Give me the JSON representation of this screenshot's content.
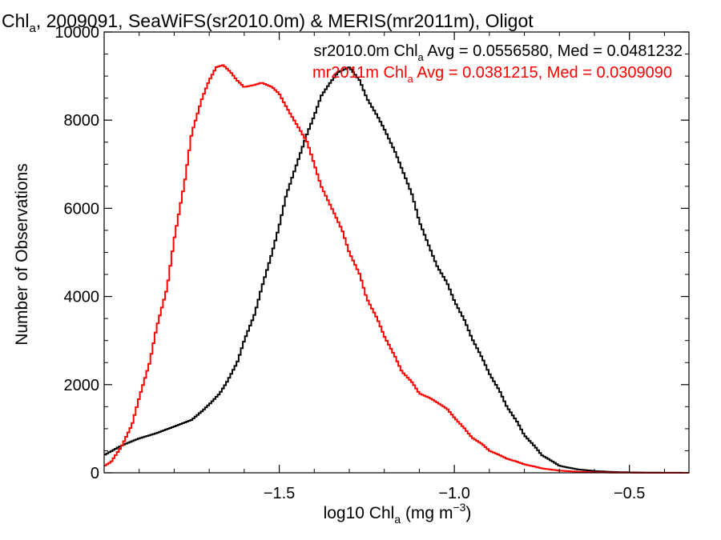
{
  "chart_data": {
    "type": "line",
    "title": "Chl, 2009091, SeaWiFS(sr2010.0m) & MERIS(mr2011m), Oligot",
    "title_parts": {
      "pre": "Chl",
      "sub": "a",
      "post": ", 2009091, SeaWiFS(sr2010.0m) & MERIS(mr2011m), Oligot"
    },
    "xlabel_parts": {
      "pre": "log10 Chl",
      "sub": "a",
      "mid": " (mg m",
      "sup": "−3",
      "post": ")"
    },
    "ylabel": "Number of Observations",
    "xlim": [
      -2.0,
      -0.33
    ],
    "ylim": [
      0,
      10000
    ],
    "xticks": [
      {
        "value": -1.5,
        "label": "−1.5"
      },
      {
        "value": -1.0,
        "label": "−1.0"
      },
      {
        "value": -0.5,
        "label": "−0.5"
      }
    ],
    "yticks": [
      {
        "value": 0,
        "label": "0"
      },
      {
        "value": 2000,
        "label": "2000"
      },
      {
        "value": 4000,
        "label": "4000"
      },
      {
        "value": 6000,
        "label": "6000"
      },
      {
        "value": 8000,
        "label": "8000"
      },
      {
        "value": 10000,
        "label": "10000"
      }
    ],
    "grid": false,
    "legend": [
      {
        "pre": "sr2010.0m Chl",
        "sub": "a",
        "post": " Avg = 0.0556580, Med = 0.0481232",
        "color": "#000000"
      },
      {
        "pre": "mr2011m Chl",
        "sub": "a",
        "post": " Avg = 0.0381215, Med = 0.0309090",
        "color": "#ff0000"
      }
    ],
    "series": [
      {
        "color": "#000000",
        "x": [
          -2.0,
          -1.95,
          -1.9,
          -1.85,
          -1.8,
          -1.75,
          -1.72,
          -1.7,
          -1.67,
          -1.65,
          -1.62,
          -1.6,
          -1.57,
          -1.55,
          -1.52,
          -1.5,
          -1.48,
          -1.45,
          -1.42,
          -1.4,
          -1.38,
          -1.35,
          -1.33,
          -1.3,
          -1.27,
          -1.25,
          -1.22,
          -1.2,
          -1.17,
          -1.15,
          -1.12,
          -1.1,
          -1.07,
          -1.05,
          -1.02,
          -1.0,
          -0.97,
          -0.95,
          -0.92,
          -0.9,
          -0.87,
          -0.85,
          -0.82,
          -0.8,
          -0.77,
          -0.75,
          -0.72,
          -0.7,
          -0.65,
          -0.6,
          -0.55,
          -0.5,
          -0.45,
          -0.4,
          -0.35,
          -0.33
        ],
        "y": [
          400,
          620,
          780,
          900,
          1050,
          1200,
          1400,
          1550,
          1800,
          2050,
          2500,
          3000,
          3600,
          4200,
          5000,
          5600,
          6300,
          7000,
          7700,
          8100,
          8550,
          8900,
          9100,
          9200,
          8900,
          8500,
          8100,
          7800,
          7300,
          6900,
          6300,
          5700,
          5100,
          4700,
          4300,
          3900,
          3450,
          3050,
          2600,
          2250,
          1850,
          1500,
          1150,
          850,
          600,
          400,
          260,
          160,
          80,
          40,
          20,
          10,
          5,
          2,
          1,
          0
        ]
      },
      {
        "color": "#ff0000",
        "x": [
          -2.0,
          -1.98,
          -1.95,
          -1.92,
          -1.9,
          -1.87,
          -1.85,
          -1.82,
          -1.8,
          -1.77,
          -1.75,
          -1.72,
          -1.7,
          -1.68,
          -1.66,
          -1.64,
          -1.62,
          -1.6,
          -1.57,
          -1.55,
          -1.52,
          -1.5,
          -1.48,
          -1.45,
          -1.42,
          -1.4,
          -1.38,
          -1.35,
          -1.32,
          -1.3,
          -1.27,
          -1.25,
          -1.22,
          -1.2,
          -1.17,
          -1.15,
          -1.12,
          -1.1,
          -1.07,
          -1.05,
          -1.02,
          -1.0,
          -0.97,
          -0.95,
          -0.92,
          -0.9,
          -0.87,
          -0.85,
          -0.82,
          -0.8,
          -0.77,
          -0.75,
          -0.7,
          -0.65,
          -0.6,
          -0.55,
          -0.5,
          -0.45,
          -0.4,
          -0.33
        ],
        "y": [
          150,
          250,
          600,
          1100,
          1700,
          2500,
          3300,
          4200,
          5300,
          6600,
          7700,
          8500,
          8900,
          9200,
          9250,
          9100,
          8900,
          8750,
          8800,
          8850,
          8750,
          8600,
          8300,
          7900,
          7500,
          7000,
          6500,
          6000,
          5500,
          5000,
          4500,
          3950,
          3500,
          3100,
          2650,
          2300,
          2050,
          1800,
          1700,
          1600,
          1450,
          1250,
          1000,
          800,
          650,
          500,
          400,
          320,
          250,
          190,
          140,
          100,
          50,
          25,
          12,
          6,
          3,
          1,
          0,
          0
        ]
      }
    ]
  }
}
